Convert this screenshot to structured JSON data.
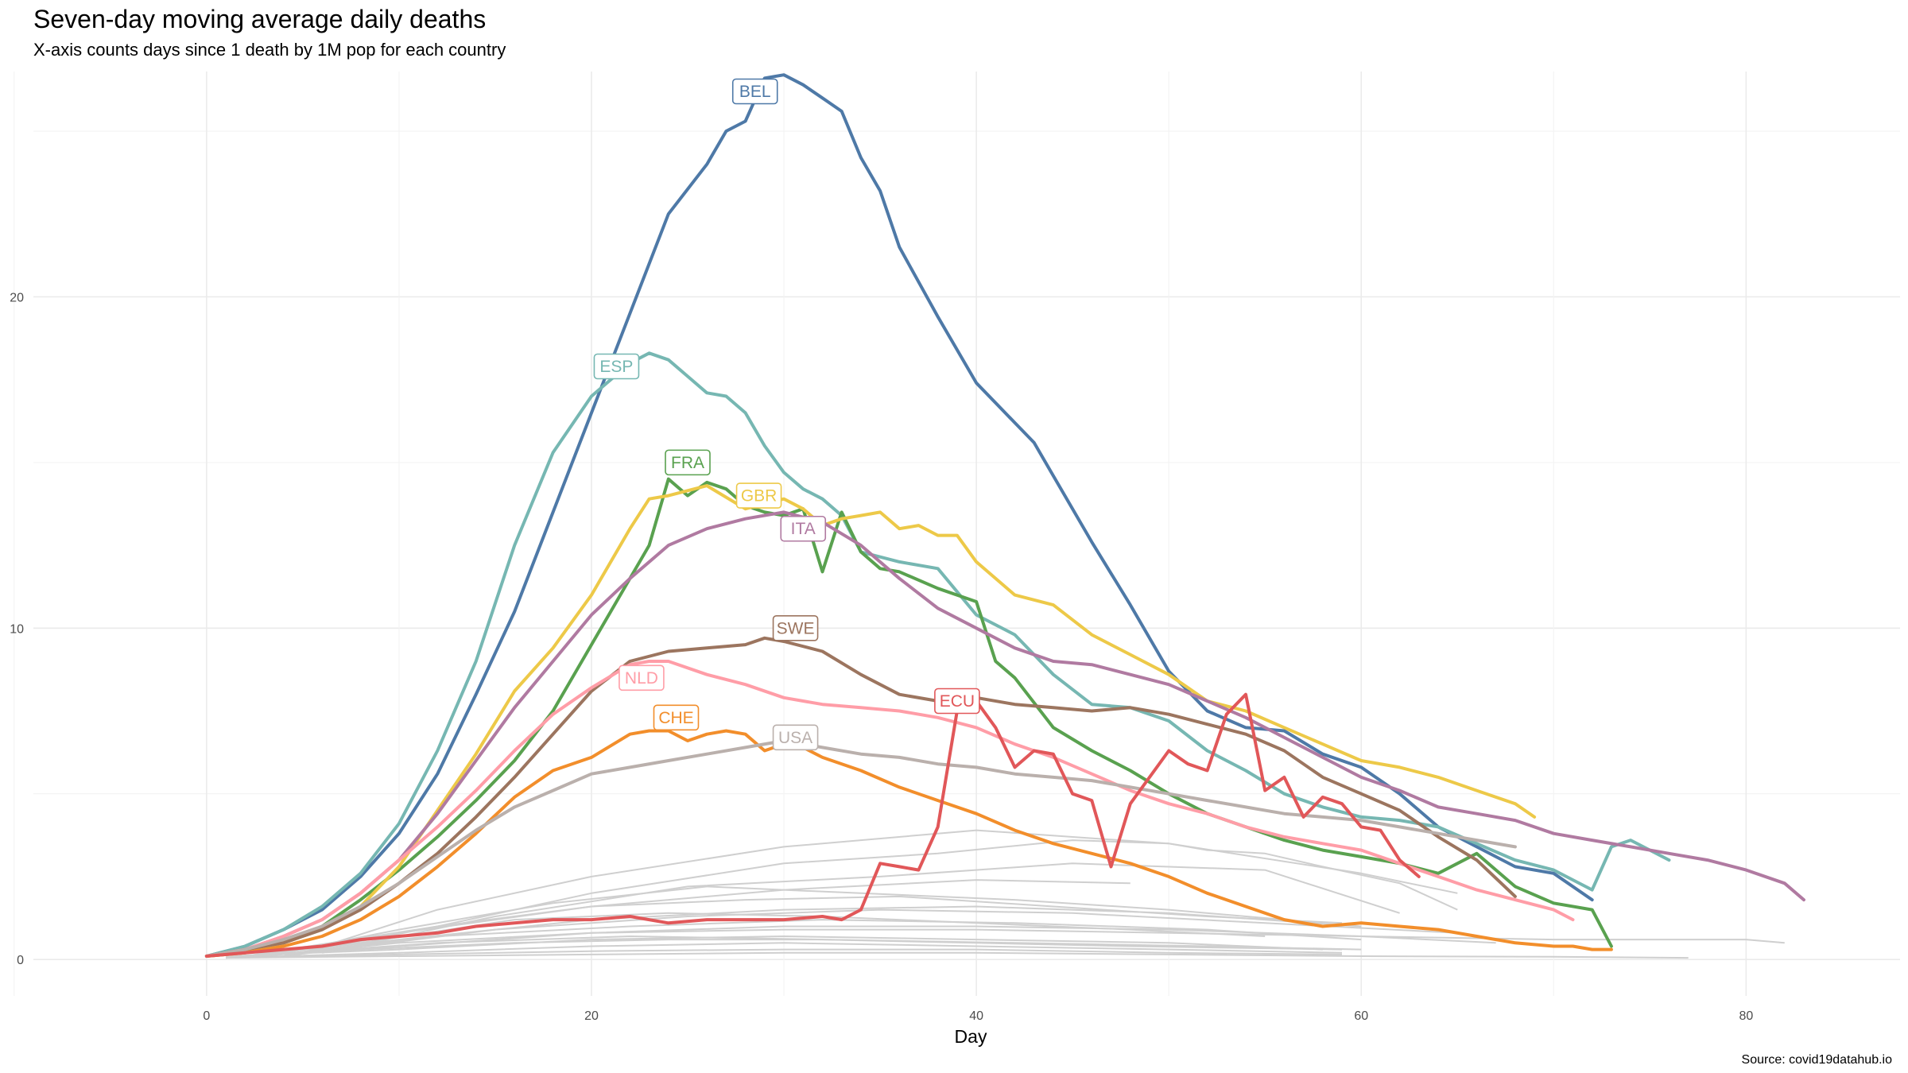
{
  "title": "Seven-day moving average daily deaths",
  "subtitle": "X-axis counts days since 1 death by 1M pop for each country",
  "caption": "Source: covid19datahub.io",
  "chart_data": {
    "type": "line",
    "xlabel": "Day",
    "ylabel": "",
    "xlim": [
      -9,
      88
    ],
    "ylim": [
      -1.1,
      26.8
    ],
    "xticks": [
      0,
      20,
      40,
      60,
      80
    ],
    "yticks": [
      0,
      10,
      20
    ],
    "grid": true,
    "legend": "none",
    "series": [
      {
        "name": "BEL",
        "color": "#4e79a7",
        "label_at": [
          28.5,
          26.2
        ],
        "x": [
          0,
          2,
          4,
          6,
          8,
          10,
          12,
          14,
          16,
          18,
          20,
          22,
          24,
          26,
          27,
          28,
          29,
          30,
          31,
          32,
          33,
          34,
          35,
          36,
          38,
          40,
          42,
          43,
          44,
          46,
          48,
          50,
          52,
          54,
          56,
          58,
          60,
          62,
          64,
          66,
          68,
          70,
          72
        ],
        "y": [
          0.1,
          0.4,
          0.9,
          1.5,
          2.5,
          3.8,
          5.6,
          8.0,
          10.5,
          13.5,
          16.5,
          19.5,
          22.5,
          24.0,
          25.0,
          25.3,
          26.6,
          26.7,
          26.4,
          26.0,
          25.6,
          24.2,
          23.2,
          21.5,
          19.4,
          17.4,
          16.2,
          15.6,
          14.6,
          12.6,
          10.7,
          8.7,
          7.5,
          7.0,
          6.9,
          6.2,
          5.8,
          5.0,
          4.0,
          3.4,
          2.8,
          2.6,
          1.8
        ]
      },
      {
        "name": "ESP",
        "color": "#76b7b2",
        "label_at": [
          21.3,
          17.9
        ],
        "x": [
          0,
          2,
          4,
          6,
          8,
          10,
          12,
          14,
          16,
          18,
          20,
          21,
          22,
          23,
          24,
          25,
          26,
          27,
          28,
          29,
          30,
          31,
          32,
          33,
          34,
          36,
          38,
          40,
          42,
          44,
          46,
          48,
          50,
          52,
          54,
          56,
          58,
          60,
          62,
          64,
          66,
          68,
          70,
          72,
          73,
          74,
          75,
          76
        ],
        "y": [
          0.1,
          0.4,
          0.9,
          1.6,
          2.6,
          4.1,
          6.3,
          9.0,
          12.5,
          15.3,
          17.0,
          17.5,
          18.0,
          18.3,
          18.1,
          17.6,
          17.1,
          17.0,
          16.5,
          15.5,
          14.7,
          14.2,
          13.9,
          13.4,
          12.3,
          12.0,
          11.8,
          10.4,
          9.8,
          8.6,
          7.7,
          7.6,
          7.2,
          6.3,
          5.7,
          5.0,
          4.6,
          4.3,
          4.2,
          4.0,
          3.5,
          3.0,
          2.7,
          2.1,
          3.4,
          3.6,
          3.3,
          3.0
        ]
      },
      {
        "name": "FRA",
        "color": "#59a14f",
        "label_at": [
          25.0,
          15.0
        ],
        "x": [
          0,
          2,
          4,
          6,
          8,
          10,
          12,
          14,
          16,
          18,
          20,
          22,
          23,
          24,
          25,
          26,
          27,
          28,
          29,
          30,
          31,
          32,
          33,
          34,
          35,
          36,
          38,
          40,
          41,
          42,
          44,
          46,
          48,
          50,
          52,
          54,
          56,
          58,
          60,
          62,
          64,
          66,
          67,
          68,
          70,
          72,
          73
        ],
        "y": [
          0.1,
          0.3,
          0.5,
          1.0,
          1.8,
          2.7,
          3.7,
          4.8,
          6.0,
          7.5,
          9.5,
          11.5,
          12.5,
          14.5,
          14.0,
          14.4,
          14.2,
          13.7,
          13.5,
          13.4,
          13.6,
          11.7,
          13.5,
          12.3,
          11.8,
          11.7,
          11.2,
          10.8,
          9.0,
          8.5,
          7.0,
          6.3,
          5.7,
          5.0,
          4.4,
          4.0,
          3.6,
          3.3,
          3.1,
          2.9,
          2.6,
          3.2,
          2.7,
          2.2,
          1.7,
          1.5,
          0.4
        ]
      },
      {
        "name": "GBR",
        "color": "#edc948",
        "label_at": [
          28.7,
          14.0
        ],
        "x": [
          0,
          2,
          4,
          6,
          8,
          10,
          12,
          14,
          16,
          18,
          20,
          22,
          23,
          24,
          26,
          28,
          30,
          31,
          32,
          33,
          34,
          35,
          36,
          37,
          38,
          39,
          40,
          42,
          44,
          46,
          48,
          50,
          52,
          54,
          56,
          58,
          60,
          62,
          64,
          66,
          68,
          69
        ],
        "y": [
          0.1,
          0.2,
          0.5,
          0.9,
          1.6,
          2.8,
          4.5,
          6.2,
          8.1,
          9.4,
          11.0,
          13.0,
          13.9,
          14.0,
          14.3,
          13.6,
          13.9,
          13.6,
          13.1,
          13.3,
          13.4,
          13.5,
          13.0,
          13.1,
          12.8,
          12.8,
          12.0,
          11.0,
          10.7,
          9.8,
          9.2,
          8.6,
          7.8,
          7.5,
          7.0,
          6.5,
          6.0,
          5.8,
          5.5,
          5.1,
          4.7,
          4.3
        ]
      },
      {
        "name": "ITA",
        "color": "#b07aa1",
        "label_at": [
          31.0,
          13.0
        ],
        "x": [
          0,
          2,
          4,
          6,
          8,
          10,
          12,
          14,
          16,
          18,
          20,
          22,
          24,
          26,
          28,
          30,
          32,
          34,
          36,
          38,
          40,
          42,
          44,
          46,
          48,
          50,
          52,
          54,
          56,
          58,
          60,
          62,
          64,
          66,
          68,
          70,
          72,
          74,
          76,
          78,
          80,
          82,
          83
        ],
        "y": [
          0.1,
          0.3,
          0.7,
          1.2,
          2.0,
          3.0,
          4.4,
          6.0,
          7.6,
          9.0,
          10.4,
          11.5,
          12.5,
          13.0,
          13.3,
          13.5,
          13.2,
          12.5,
          11.5,
          10.6,
          10.0,
          9.4,
          9.0,
          8.9,
          8.6,
          8.3,
          7.8,
          7.3,
          6.7,
          6.1,
          5.5,
          5.1,
          4.6,
          4.4,
          4.2,
          3.8,
          3.6,
          3.4,
          3.2,
          3.0,
          2.7,
          2.3,
          1.8
        ]
      },
      {
        "name": "SWE",
        "color": "#9c755f",
        "label_at": [
          30.6,
          10.0
        ],
        "x": [
          0,
          2,
          4,
          6,
          8,
          10,
          12,
          14,
          16,
          18,
          20,
          22,
          24,
          26,
          28,
          29,
          30,
          32,
          34,
          36,
          38,
          40,
          42,
          44,
          46,
          48,
          50,
          52,
          54,
          56,
          58,
          60,
          62,
          64,
          66,
          68
        ],
        "y": [
          0.1,
          0.3,
          0.5,
          0.9,
          1.5,
          2.3,
          3.2,
          4.3,
          5.5,
          6.8,
          8.1,
          9.0,
          9.3,
          9.4,
          9.5,
          9.7,
          9.6,
          9.3,
          8.6,
          8.0,
          7.8,
          7.9,
          7.7,
          7.6,
          7.5,
          7.6,
          7.4,
          7.1,
          6.8,
          6.3,
          5.5,
          5.0,
          4.5,
          3.7,
          3.0,
          1.9
        ]
      },
      {
        "name": "NLD",
        "color": "#ff9da7",
        "label_at": [
          22.6,
          8.5
        ],
        "x": [
          0,
          2,
          4,
          6,
          8,
          10,
          12,
          14,
          16,
          18,
          20,
          22,
          23,
          24,
          26,
          28,
          30,
          32,
          34,
          36,
          38,
          40,
          42,
          44,
          46,
          48,
          50,
          52,
          54,
          56,
          58,
          60,
          62,
          64,
          66,
          68,
          70,
          71
        ],
        "y": [
          0.1,
          0.3,
          0.7,
          1.2,
          2.0,
          3.0,
          4.0,
          5.1,
          6.3,
          7.4,
          8.2,
          8.9,
          9.0,
          9.0,
          8.6,
          8.3,
          7.9,
          7.7,
          7.6,
          7.5,
          7.3,
          7.0,
          6.5,
          6.1,
          5.6,
          5.1,
          4.7,
          4.4,
          4.0,
          3.7,
          3.5,
          3.3,
          2.9,
          2.5,
          2.1,
          1.8,
          1.5,
          1.2
        ]
      },
      {
        "name": "CHE",
        "color": "#f28e2b",
        "label_at": [
          24.4,
          7.3
        ],
        "x": [
          0,
          2,
          4,
          6,
          8,
          10,
          12,
          14,
          16,
          18,
          20,
          22,
          23,
          24,
          25,
          26,
          27,
          28,
          29,
          30,
          31,
          32,
          34,
          36,
          38,
          40,
          42,
          44,
          46,
          48,
          50,
          52,
          54,
          56,
          58,
          60,
          62,
          64,
          66,
          68,
          70,
          71,
          72,
          73
        ],
        "y": [
          0.1,
          0.2,
          0.4,
          0.7,
          1.2,
          1.9,
          2.8,
          3.8,
          4.9,
          5.7,
          6.1,
          6.8,
          6.9,
          6.9,
          6.6,
          6.8,
          6.9,
          6.8,
          6.3,
          6.5,
          6.4,
          6.1,
          5.7,
          5.2,
          4.8,
          4.4,
          3.9,
          3.5,
          3.2,
          2.9,
          2.5,
          2.0,
          1.6,
          1.2,
          1.0,
          1.1,
          1.0,
          0.9,
          0.7,
          0.5,
          0.4,
          0.4,
          0.3,
          0.3
        ]
      },
      {
        "name": "USA",
        "color": "#bab0ac",
        "label_at": [
          30.6,
          6.7
        ],
        "x": [
          0,
          2,
          4,
          6,
          8,
          10,
          12,
          14,
          16,
          18,
          20,
          22,
          24,
          26,
          28,
          30,
          32,
          34,
          36,
          38,
          40,
          42,
          44,
          46,
          48,
          50,
          52,
          54,
          56,
          58,
          60,
          62,
          64,
          66,
          68
        ],
        "y": [
          0.1,
          0.3,
          0.6,
          1.0,
          1.6,
          2.3,
          3.1,
          3.9,
          4.6,
          5.1,
          5.6,
          5.8,
          6.0,
          6.2,
          6.4,
          6.6,
          6.4,
          6.2,
          6.1,
          5.9,
          5.8,
          5.6,
          5.5,
          5.4,
          5.2,
          5.0,
          4.8,
          4.6,
          4.4,
          4.3,
          4.2,
          4.0,
          3.8,
          3.6,
          3.4
        ]
      },
      {
        "name": "ECU",
        "color": "#e15759",
        "label_at": [
          39.0,
          7.8
        ],
        "x": [
          0,
          2,
          4,
          6,
          8,
          10,
          12,
          14,
          16,
          18,
          20,
          22,
          24,
          26,
          28,
          30,
          32,
          33,
          34,
          35,
          36,
          37,
          38,
          39,
          40,
          41,
          42,
          43,
          44,
          45,
          46,
          47,
          48,
          50,
          51,
          52,
          53,
          54,
          55,
          56,
          57,
          58,
          59,
          60,
          61,
          62,
          63
        ],
        "y": [
          0.1,
          0.2,
          0.3,
          0.4,
          0.6,
          0.7,
          0.8,
          1.0,
          1.1,
          1.2,
          1.2,
          1.3,
          1.1,
          1.2,
          1.2,
          1.2,
          1.3,
          1.2,
          1.5,
          2.9,
          2.8,
          2.7,
          4.0,
          7.5,
          7.8,
          7.0,
          5.8,
          6.3,
          6.2,
          5.0,
          4.8,
          2.8,
          4.7,
          6.3,
          5.9,
          5.7,
          7.4,
          8.0,
          5.1,
          5.5,
          4.3,
          4.9,
          4.7,
          4.0,
          3.9,
          3.0,
          2.5
        ]
      }
    ],
    "background_series": [
      {
        "x": [
          3,
          10,
          20,
          30,
          40,
          50,
          60,
          70,
          80,
          82
        ],
        "y": [
          0.1,
          0.5,
          0.8,
          0.9,
          0.9,
          0.8,
          0.7,
          0.6,
          0.6,
          0.5
        ]
      },
      {
        "x": [
          5,
          12,
          20,
          30,
          40,
          50,
          60,
          65
        ],
        "y": [
          0.2,
          1.5,
          2.5,
          3.4,
          3.9,
          3.5,
          2.6,
          2.0
        ]
      },
      {
        "x": [
          4,
          12,
          20,
          30,
          38,
          45,
          50,
          52,
          55,
          58,
          62,
          65
        ],
        "y": [
          0.1,
          1.0,
          2.0,
          2.9,
          3.2,
          3.6,
          3.5,
          3.3,
          3.2,
          2.8,
          2.3,
          1.5
        ]
      },
      {
        "x": [
          6,
          15,
          25,
          35,
          45,
          55,
          62
        ],
        "y": [
          0.2,
          1.3,
          2.2,
          2.5,
          2.9,
          2.7,
          1.4
        ]
      },
      {
        "x": [
          3,
          10,
          20,
          30,
          40,
          48
        ],
        "y": [
          0.1,
          0.8,
          1.6,
          2.1,
          2.4,
          2.3
        ]
      },
      {
        "x": [
          2,
          10,
          20,
          30,
          40,
          50,
          60
        ],
        "y": [
          0.1,
          0.6,
          1.2,
          1.5,
          1.6,
          1.4,
          1.0
        ]
      },
      {
        "x": [
          4,
          15,
          25,
          35,
          45,
          55,
          65
        ],
        "y": [
          0.1,
          0.9,
          1.3,
          1.5,
          1.4,
          1.1,
          0.8
        ]
      },
      {
        "x": [
          3,
          12,
          22,
          32,
          42,
          52,
          60
        ],
        "y": [
          0.1,
          0.7,
          1.0,
          1.2,
          1.1,
          0.9,
          0.6
        ]
      },
      {
        "x": [
          2,
          10,
          20,
          30,
          40,
          50,
          60,
          67
        ],
        "y": [
          0.1,
          0.4,
          0.8,
          1.0,
          1.0,
          0.9,
          0.7,
          0.5
        ]
      },
      {
        "x": [
          1,
          10,
          20,
          30,
          40,
          50,
          58
        ],
        "y": [
          0.1,
          0.3,
          0.6,
          0.7,
          0.6,
          0.5,
          0.3
        ]
      },
      {
        "x": [
          2,
          12,
          22,
          32,
          42,
          52,
          60
        ],
        "y": [
          0.1,
          0.5,
          0.7,
          0.6,
          0.5,
          0.4,
          0.3
        ]
      },
      {
        "x": [
          1,
          10,
          20,
          30,
          40,
          50,
          59
        ],
        "y": [
          0.05,
          0.2,
          0.4,
          0.5,
          0.4,
          0.3,
          0.2
        ]
      },
      {
        "x": [
          1,
          10,
          20,
          30,
          40,
          50,
          59
        ],
        "y": [
          0.05,
          0.15,
          0.25,
          0.3,
          0.3,
          0.2,
          0.15
        ]
      },
      {
        "x": [
          1,
          10,
          20,
          30,
          40,
          50,
          60,
          70,
          77
        ],
        "y": [
          0.05,
          0.1,
          0.15,
          0.2,
          0.2,
          0.15,
          0.1,
          0.08,
          0.05
        ]
      },
      {
        "x": [
          2,
          12,
          20,
          28,
          36,
          44,
          52,
          59
        ],
        "y": [
          0.1,
          1.0,
          1.6,
          1.8,
          1.9,
          1.6,
          1.3,
          1.1
        ]
      },
      {
        "x": [
          3,
          10,
          18,
          26,
          34,
          42,
          50,
          56
        ],
        "y": [
          0.1,
          0.9,
          1.7,
          2.2,
          2.0,
          1.8,
          1.5,
          1.2
        ]
      },
      {
        "x": [
          2,
          8,
          16,
          24,
          32,
          40,
          48,
          55
        ],
        "y": [
          0.1,
          0.5,
          1.2,
          1.4,
          1.3,
          1.1,
          0.9,
          0.7
        ]
      },
      {
        "x": [
          1,
          8,
          16,
          24,
          32,
          40,
          48,
          59
        ],
        "y": [
          0.05,
          0.3,
          0.5,
          0.6,
          0.6,
          0.5,
          0.4,
          0.3
        ]
      }
    ]
  }
}
